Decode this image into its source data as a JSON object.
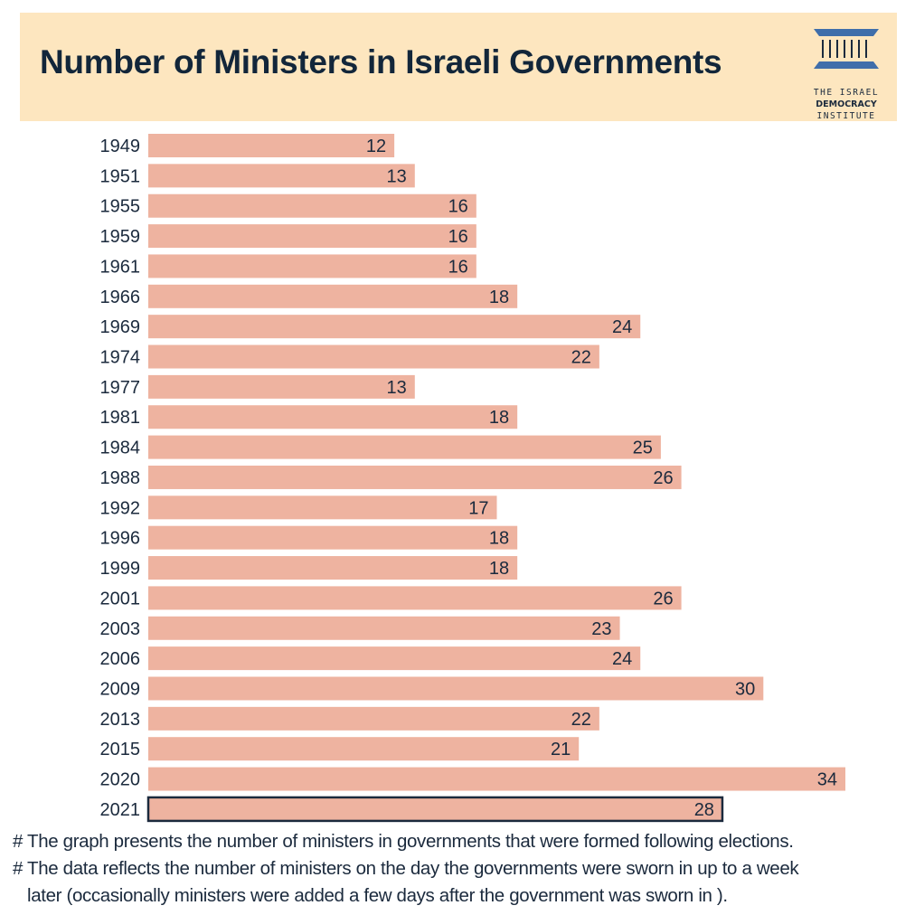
{
  "header": {
    "title": "Number of Ministers in Israeli Governments",
    "logo": {
      "icon": "institute-pillars-logo-icon",
      "line1": "THE ISRAEL",
      "line2": "DEMOCRACY",
      "line3": "INSTITUTE"
    }
  },
  "colors": {
    "header_bg": "#fde6bf",
    "bar": "#eeb3a0",
    "highlight_border": "#1b2a3d",
    "text": "#1b2a3d",
    "logo_blue": "#3f6eaa"
  },
  "chart_data": {
    "type": "bar",
    "orientation": "horizontal",
    "title": "Number of Ministers in Israeli Governments",
    "xlabel": "",
    "ylabel": "",
    "xlim": [
      0,
      34
    ],
    "grid": false,
    "legend": "none",
    "categories": [
      "1949",
      "1951",
      "1955",
      "1959",
      "1961",
      "1966",
      "1969",
      "1974",
      "1977",
      "1981",
      "1984",
      "1988",
      "1992",
      "1996",
      "1999",
      "2001",
      "2003",
      "2006",
      "2009",
      "2013",
      "2015",
      "2020",
      "2021"
    ],
    "values": [
      12,
      13,
      16,
      16,
      16,
      18,
      24,
      22,
      13,
      18,
      25,
      26,
      17,
      18,
      18,
      26,
      23,
      24,
      30,
      22,
      21,
      34,
      28
    ],
    "highlighted": [
      "2021"
    ],
    "data_labels": true
  },
  "notes": [
    "# The graph presents the number of ministers in governments that were formed following elections.",
    "# The data reflects the number of ministers on the day the governments were sworn in up to a week",
    "later (occasionally ministers were added a few days after the government was sworn in )."
  ]
}
